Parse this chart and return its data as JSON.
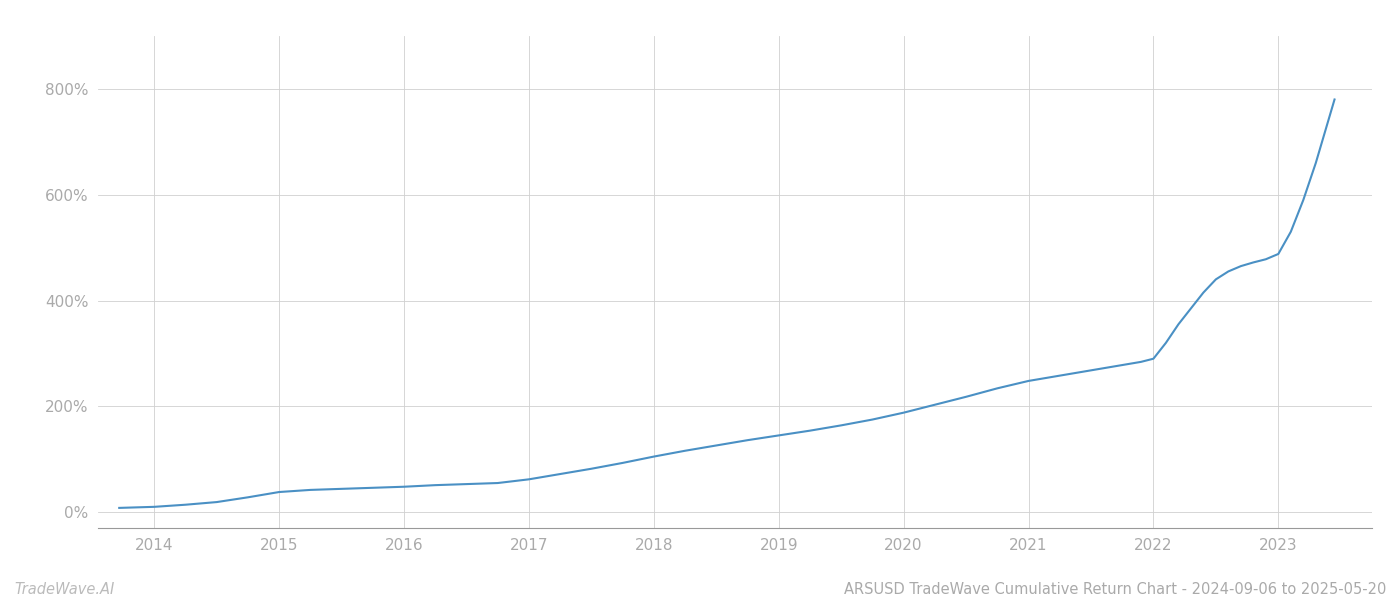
{
  "title": "ARSUSD TradeWave Cumulative Return Chart - 2024-09-06 to 2025-05-20",
  "watermark": "TradeWave.AI",
  "line_color": "#4a90c4",
  "background_color": "#ffffff",
  "grid_color": "#d0d0d0",
  "x_years": [
    2014,
    2015,
    2016,
    2017,
    2018,
    2019,
    2020,
    2021,
    2022,
    2023
  ],
  "y_ticks": [
    0,
    200,
    400,
    600,
    800
  ],
  "y_labels": [
    "0%",
    "200%",
    "400%",
    "600%",
    "800%"
  ],
  "xlim_start": 2013.55,
  "xlim_end": 2023.75,
  "ylim_min": -30,
  "ylim_max": 900,
  "data_x": [
    2013.72,
    2014.0,
    2014.25,
    2014.5,
    2014.75,
    2015.0,
    2015.25,
    2015.5,
    2015.75,
    2016.0,
    2016.25,
    2016.5,
    2016.75,
    2017.0,
    2017.25,
    2017.5,
    2017.75,
    2018.0,
    2018.25,
    2018.5,
    2018.75,
    2019.0,
    2019.25,
    2019.5,
    2019.75,
    2020.0,
    2020.25,
    2020.5,
    2020.75,
    2021.0,
    2021.1,
    2021.2,
    2021.3,
    2021.4,
    2021.5,
    2021.6,
    2021.7,
    2021.8,
    2021.9,
    2022.0,
    2022.1,
    2022.2,
    2022.3,
    2022.4,
    2022.5,
    2022.6,
    2022.7,
    2022.8,
    2022.9,
    2023.0,
    2023.1,
    2023.2,
    2023.3,
    2023.4,
    2023.45
  ],
  "data_y": [
    8,
    10,
    14,
    19,
    28,
    38,
    42,
    44,
    46,
    48,
    51,
    53,
    55,
    62,
    72,
    82,
    93,
    105,
    116,
    126,
    136,
    145,
    154,
    164,
    175,
    188,
    203,
    218,
    234,
    248,
    252,
    256,
    260,
    264,
    268,
    272,
    276,
    280,
    284,
    290,
    320,
    355,
    385,
    415,
    440,
    455,
    465,
    472,
    478,
    488,
    530,
    590,
    660,
    740,
    780
  ],
  "line_width": 1.5,
  "title_fontsize": 10.5,
  "tick_fontsize": 11,
  "watermark_fontsize": 10.5
}
